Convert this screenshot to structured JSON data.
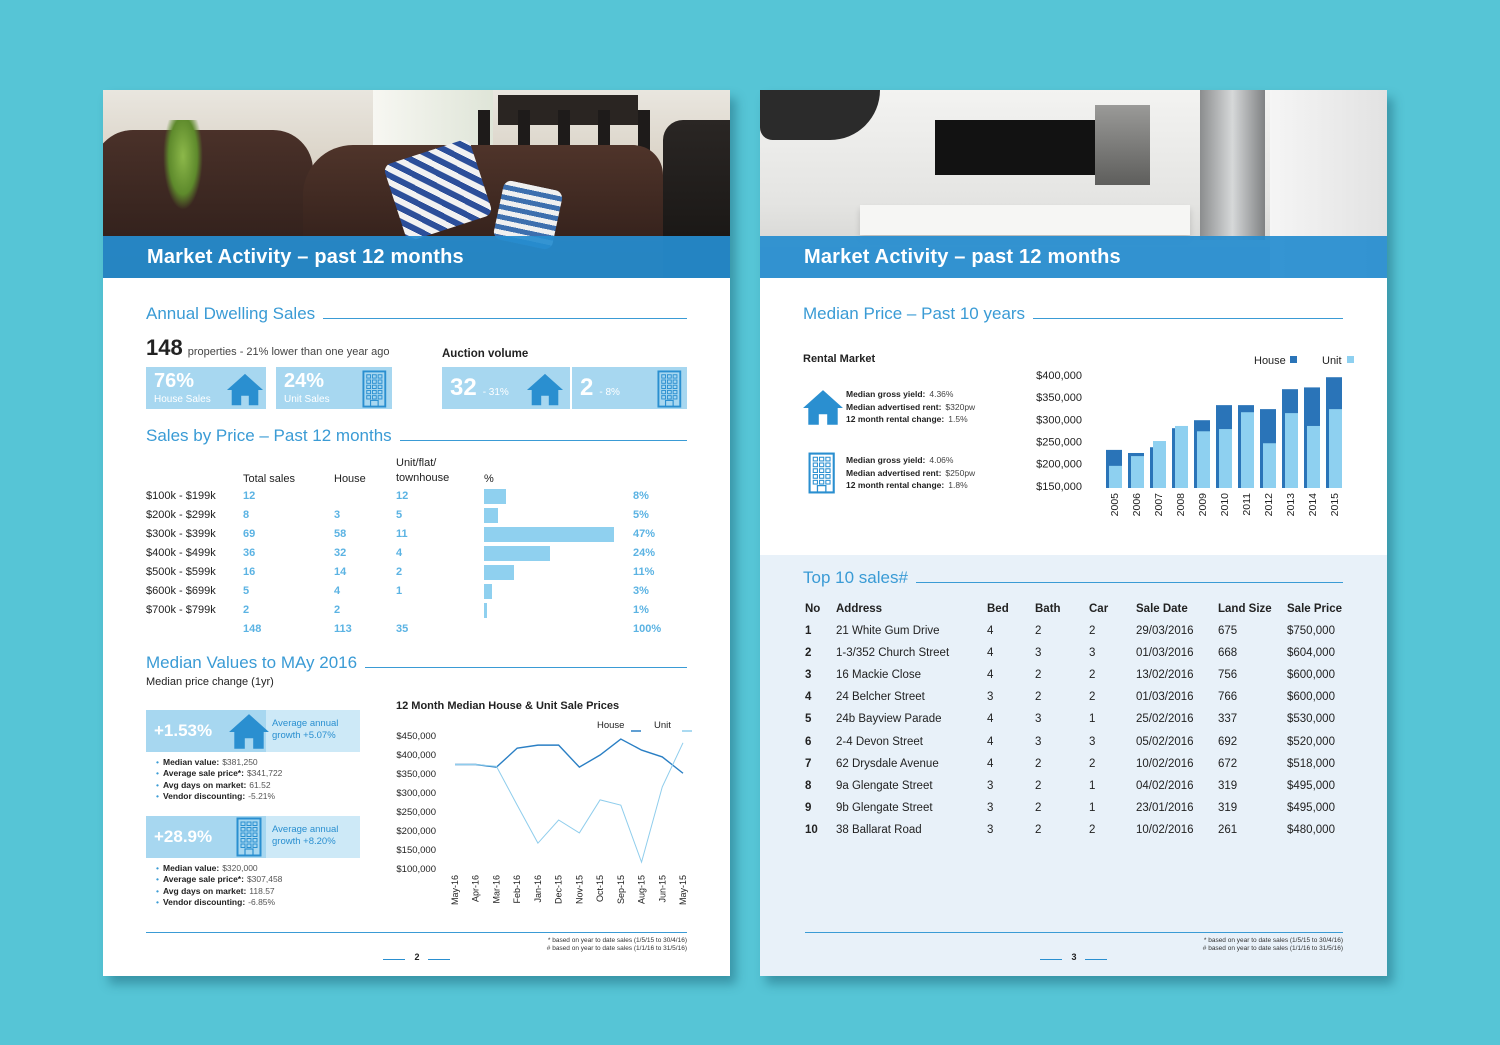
{
  "page_left": {
    "header": {
      "title": "Market Activity – past 12 months"
    },
    "annual_sales": {
      "title": "Annual Dwelling Sales",
      "count": "148",
      "count_text": "properties - 21% lower than one year ago",
      "house_tile": {
        "value": "76%",
        "label": "House Sales"
      },
      "unit_tile": {
        "value": "24%",
        "label": "Unit Sales"
      },
      "auction_title": "Auction volume",
      "house_auction": {
        "value": "32",
        "change": "- 31%"
      },
      "unit_auction": {
        "value": "2",
        "change": "- 8%"
      }
    },
    "sales_by_price": {
      "title": "Sales by Price – Past 12 months",
      "columns": [
        "Total sales",
        "House",
        "Unit/flat/ townhouse",
        "%"
      ],
      "rows": [
        {
          "range": "$100k - $199k",
          "total": 12,
          "house": null,
          "unit": 12,
          "pct": 8,
          "pct_label": "8%"
        },
        {
          "range": "$200k - $299k",
          "total": 8,
          "house": 3,
          "unit": 5,
          "pct": 5,
          "pct_label": "5%"
        },
        {
          "range": "$300k - $399k",
          "total": 69,
          "house": 58,
          "unit": 11,
          "pct": 47,
          "pct_label": "47%"
        },
        {
          "range": "$400k - $499k",
          "total": 36,
          "house": 32,
          "unit": 4,
          "pct": 24,
          "pct_label": "24%"
        },
        {
          "range": "$500k - $599k",
          "total": 16,
          "house": 14,
          "unit": 2,
          "pct": 11,
          "pct_label": "11%"
        },
        {
          "range": "$600k - $699k",
          "total": 5,
          "house": 4,
          "unit": 1,
          "pct": 3,
          "pct_label": "3%"
        },
        {
          "range": "$700k - $799k",
          "total": 2,
          "house": 2,
          "unit": null,
          "pct": 1,
          "pct_label": "1%"
        }
      ],
      "totals": {
        "total": 148,
        "house": 113,
        "unit": 35,
        "pct_label": "100%"
      }
    },
    "median_values": {
      "title": "Median Values to MAy 2016",
      "subtitle": "Median price change (1yr)",
      "house": {
        "change": "+1.53%",
        "growth": "Average annual growth +5.07%",
        "items": [
          {
            "label": "Median value:",
            "value": "$381,250"
          },
          {
            "label": "Average sale price*:",
            "value": "$341,722"
          },
          {
            "label": "Avg days on market:",
            "value": "61.52"
          },
          {
            "label": "Vendor discounting:",
            "value": "-5.21%"
          }
        ]
      },
      "unit": {
        "change": "+28.9%",
        "growth": "Average annual growth +8.20%",
        "items": [
          {
            "label": "Median value:",
            "value": "$320,000"
          },
          {
            "label": "Average sale price*:",
            "value": "$307,458"
          },
          {
            "label": "Avg days on market:",
            "value": "118.57"
          },
          {
            "label": "Vendor discounting:",
            "value": "-6.85%"
          }
        ]
      }
    },
    "chart_data": {
      "type": "line",
      "title": "12 Month Median House & Unit Sale Prices",
      "categories": [
        "May-16",
        "Apr-16",
        "Mar-16",
        "Feb-16",
        "Jan-16",
        "Dec-15",
        "Nov-15",
        "Oct-15",
        "Sep-15",
        "Aug-15",
        "Jun-15",
        "May-15"
      ],
      "series": [
        {
          "name": "House",
          "color": "#2a7fc4",
          "values": [
            375000,
            375000,
            368000,
            418000,
            426000,
            426000,
            368000,
            400000,
            442000,
            413000,
            395000,
            352000
          ]
        },
        {
          "name": "Unit",
          "color": "#8fcdec",
          "values": [
            375000,
            375000,
            370000,
            268000,
            168000,
            229000,
            195000,
            282000,
            268000,
            118000,
            316000,
            432000
          ]
        }
      ],
      "ylim": [
        100000,
        450000
      ],
      "yticks": [
        {
          "value": 100000,
          "label": "$100,000"
        },
        {
          "value": 150000,
          "label": "$150,000"
        },
        {
          "value": 200000,
          "label": "$200,000"
        },
        {
          "value": 250000,
          "label": "$250,000"
        },
        {
          "value": 300000,
          "label": "$300,000"
        },
        {
          "value": 350000,
          "label": "$350,000"
        },
        {
          "value": 400000,
          "label": "$400,000"
        },
        {
          "value": 450000,
          "label": "$450,000"
        }
      ],
      "grid": false
    },
    "footer": {
      "notes": [
        "* based on year to date sales (1/5/15 to 30/4/16)",
        "# based on year to date sales (1/1/16 to 31/5/16)"
      ],
      "page_number": "2"
    }
  },
  "page_right": {
    "header": {
      "title": "Market Activity – past 12 months"
    },
    "median_price": {
      "title": "Median Price – Past 10 years"
    },
    "rental": {
      "title": "Rental Market",
      "house": [
        {
          "label": "Median gross yield:",
          "value": "4.36%"
        },
        {
          "label": "Median advertised rent:",
          "value": "$320pw"
        },
        {
          "label": "12 month rental change:",
          "value": "1.5%"
        }
      ],
      "unit": [
        {
          "label": "Median gross yield:",
          "value": "4.06%"
        },
        {
          "label": "Median advertised rent:",
          "value": "$250pw"
        },
        {
          "label": "12 month rental change:",
          "value": "1.8%"
        }
      ]
    },
    "chart_data": {
      "type": "bar",
      "categories": [
        "2005",
        "2006",
        "2007",
        "2008",
        "2009",
        "2010",
        "2011",
        "2012",
        "2013",
        "2014",
        "2015"
      ],
      "series": [
        {
          "name": "House",
          "color": "#2a74b8",
          "values": [
            231000,
            224000,
            237000,
            280000,
            298000,
            332000,
            332000,
            323000,
            368000,
            372000,
            395000
          ]
        },
        {
          "name": "Unit",
          "color": "#8ed0f0",
          "values": [
            195000,
            217000,
            251000,
            285000,
            273000,
            278000,
            316000,
            246000,
            314000,
            285000,
            323000
          ]
        }
      ],
      "ylim": [
        145000,
        400000
      ],
      "yticks": [
        {
          "value": 150000,
          "label": "$150,000"
        },
        {
          "value": 200000,
          "label": "$200,000"
        },
        {
          "value": 250000,
          "label": "$250,000"
        },
        {
          "value": 300000,
          "label": "$300,000"
        },
        {
          "value": 350000,
          "label": "$350,000"
        },
        {
          "value": 400000,
          "label": "$400,000"
        }
      ],
      "grid": false
    },
    "top_sales": {
      "title": "Top 10 sales#",
      "columns": [
        "No",
        "Address",
        "Bed",
        "Bath",
        "Car",
        "Sale Date",
        "Land Size",
        "Sale Price"
      ],
      "rows": [
        [
          "1",
          "21 White Gum Drive",
          "4",
          "2",
          "2",
          "29/03/2016",
          "675",
          "$750,000"
        ],
        [
          "2",
          "1-3/352 Church Street",
          "4",
          "3",
          "3",
          "01/03/2016",
          "668",
          "$604,000"
        ],
        [
          "3",
          "16 Mackie Close",
          "4",
          "2",
          "2",
          "13/02/2016",
          "756",
          "$600,000"
        ],
        [
          "4",
          "24 Belcher Street",
          "3",
          "2",
          "2",
          "01/03/2016",
          "766",
          "$600,000"
        ],
        [
          "5",
          "24b Bayview Parade",
          "4",
          "3",
          "1",
          "25/02/2016",
          "337",
          "$530,000"
        ],
        [
          "6",
          "2-4 Devon Street",
          "4",
          "3",
          "3",
          "05/02/2016",
          "692",
          "$520,000"
        ],
        [
          "7",
          "62 Drysdale Avenue",
          "4",
          "2",
          "2",
          "10/02/2016",
          "672",
          "$518,000"
        ],
        [
          "8",
          "9a Glengate Street",
          "3",
          "2",
          "1",
          "04/02/2016",
          "319",
          "$495,000"
        ],
        [
          "9",
          "9b Glengate Street",
          "3",
          "2",
          "1",
          "23/01/2016",
          "319",
          "$495,000"
        ],
        [
          "10",
          "38 Ballarat Road",
          "3",
          "2",
          "2",
          "10/02/2016",
          "261",
          "$480,000"
        ]
      ]
    },
    "footer": {
      "notes": [
        "* based on year to date sales (1/5/15 to 30/4/16)",
        "# based on year to date sales (1/1/16 to 31/5/16)"
      ],
      "page_number": "3"
    }
  }
}
